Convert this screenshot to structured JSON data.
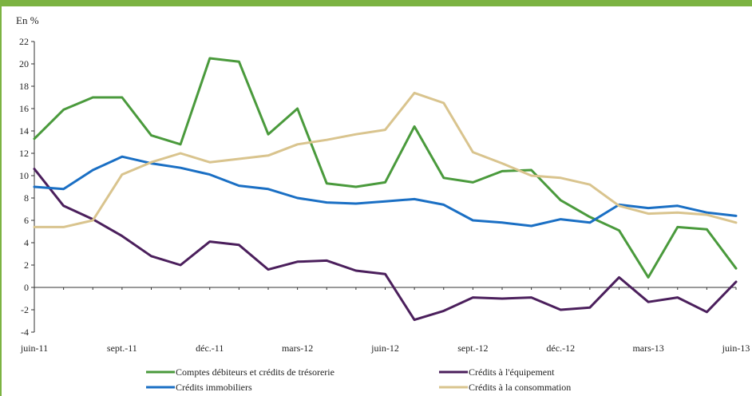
{
  "chart_data": {
    "type": "line",
    "ylabel": "En %",
    "ylim": [
      -4,
      22
    ],
    "yticks": [
      "22",
      "20",
      "18",
      "16",
      "14",
      "12",
      "10",
      "8",
      "6",
      "4",
      "2",
      "0",
      "-2",
      "-4"
    ],
    "ytick_values": [
      22,
      20,
      18,
      16,
      14,
      12,
      10,
      8,
      6,
      4,
      2,
      0,
      -2,
      -4
    ],
    "xtick_labels": [
      "juin-11",
      "sept.-11",
      "déc.-11",
      "mars-12",
      "juin-12",
      "sept.-12",
      "déc.-12",
      "mars-13",
      "juin-13"
    ],
    "xtick_index": [
      0,
      3,
      6,
      9,
      12,
      15,
      18,
      21,
      24
    ],
    "x": [
      "juin-11",
      "juil.-11",
      "août-11",
      "sept.-11",
      "oct.-11",
      "nov.-11",
      "déc.-11",
      "janv.-12",
      "févr.-12",
      "mars-12",
      "avr.-12",
      "mai-12",
      "juin-12",
      "juil.-12",
      "août-12",
      "sept.-12",
      "oct.-12",
      "nov.-12",
      "déc.-12",
      "janv.-13",
      "févr.-13",
      "mars-13",
      "avr.-13",
      "mai-13",
      "juin-13"
    ],
    "series": [
      {
        "name": "Comptes débiteurs et crédits de trésorerie",
        "color": "#4a9a3c",
        "values": [
          13.3,
          15.9,
          17.0,
          17.0,
          13.6,
          12.8,
          20.5,
          20.2,
          13.7,
          16.0,
          9.3,
          9.0,
          9.4,
          14.4,
          9.8,
          9.4,
          10.4,
          10.5,
          7.8,
          6.3,
          5.1,
          0.9,
          5.4,
          5.2,
          1.7
        ]
      },
      {
        "name": "Crédits à l'équipement",
        "color": "#4b1f5c",
        "values": [
          10.6,
          7.3,
          6.1,
          4.6,
          2.8,
          2.0,
          4.1,
          3.8,
          1.6,
          2.3,
          2.4,
          1.5,
          1.2,
          -2.9,
          -2.1,
          -0.9,
          -1.0,
          -0.9,
          -2.0,
          -1.8,
          0.9,
          -1.3,
          -0.9,
          -2.2,
          0.5
        ]
      },
      {
        "name": "Crédits immobiliers",
        "color": "#1a6fc4",
        "values": [
          9.0,
          8.8,
          10.5,
          11.7,
          11.1,
          10.7,
          10.1,
          9.1,
          8.8,
          8.0,
          7.6,
          7.5,
          7.7,
          7.9,
          7.4,
          6.0,
          5.8,
          5.5,
          6.1,
          5.8,
          7.4,
          7.1,
          7.3,
          6.7,
          6.4
        ]
      },
      {
        "name": "Crédits à la consommation",
        "color": "#d9c48e",
        "values": [
          5.4,
          5.4,
          6.0,
          10.1,
          11.2,
          12.0,
          11.2,
          11.5,
          11.8,
          12.8,
          13.2,
          13.7,
          14.1,
          17.4,
          16.5,
          12.1,
          11.1,
          10.0,
          9.8,
          9.2,
          7.3,
          6.6,
          6.7,
          6.5,
          5.8
        ]
      }
    ],
    "legend_position": "bottom"
  }
}
